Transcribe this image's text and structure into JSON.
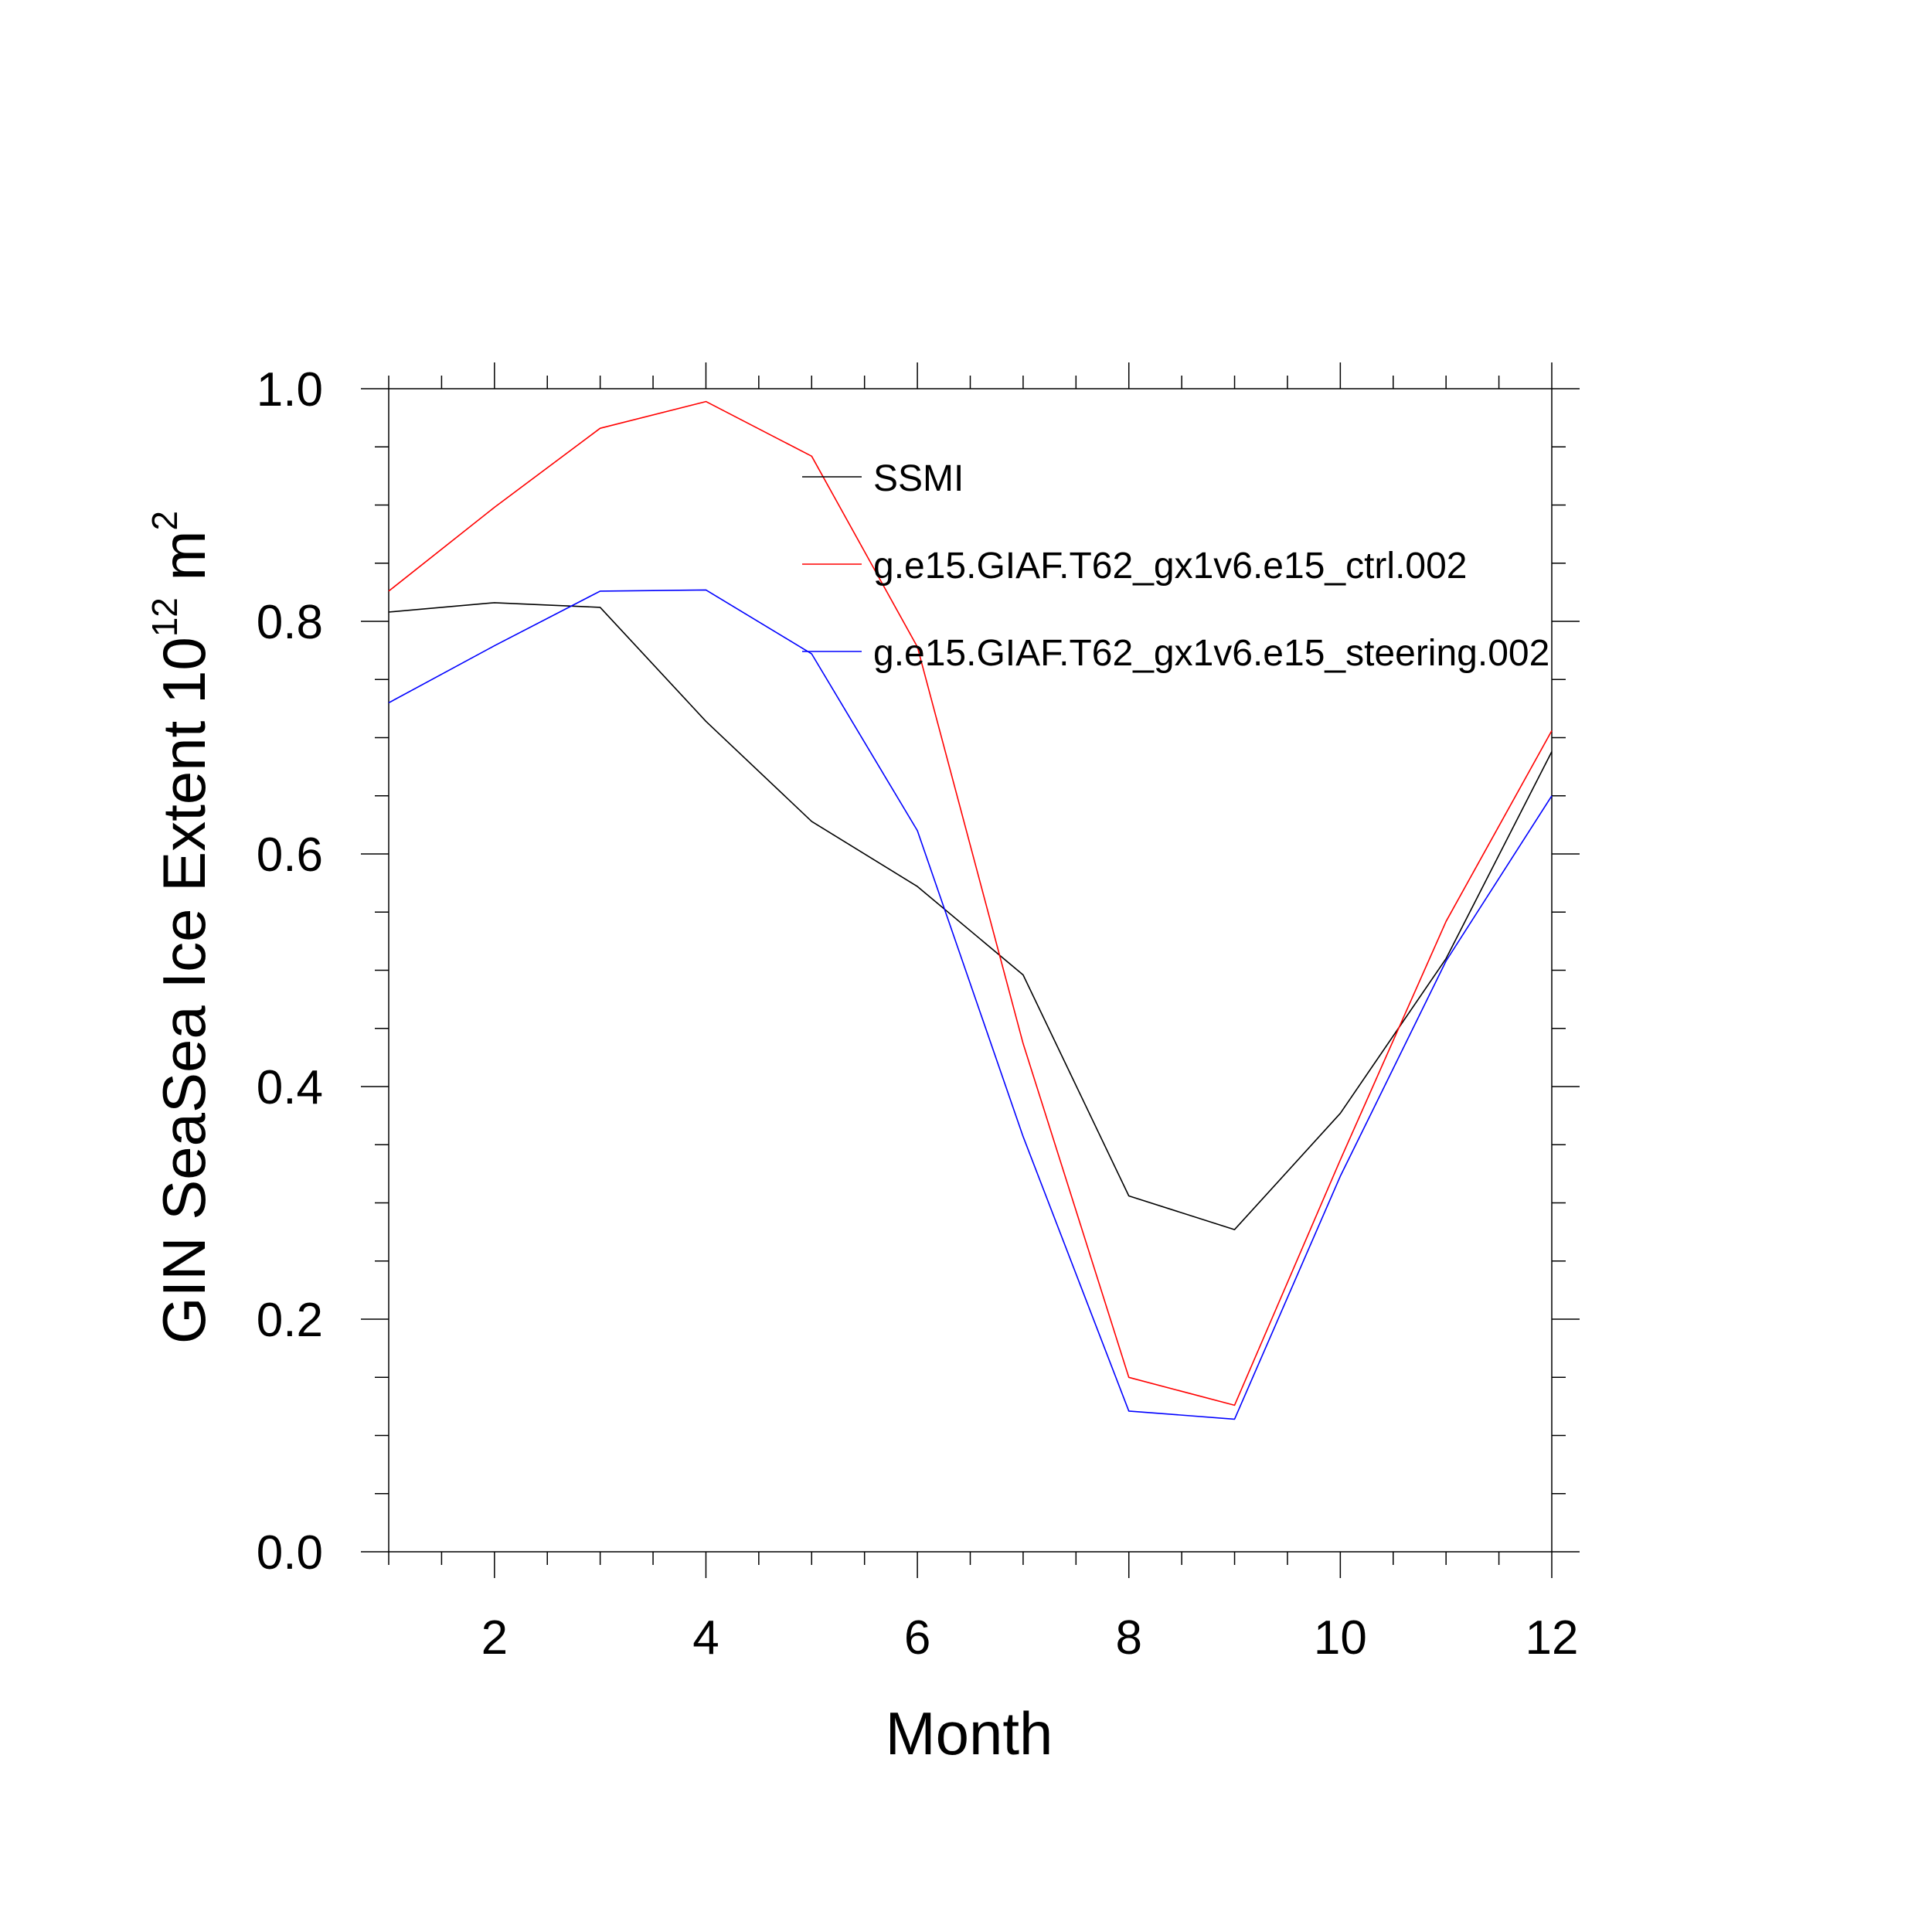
{
  "chart_data": {
    "type": "line",
    "title": "",
    "xlabel": "Month",
    "ylabel": {
      "base": "GIN SeaSea Ice Extent 10",
      "exp1": "12",
      "unit": " m",
      "exp2": "2"
    },
    "xlim": [
      1,
      12
    ],
    "ylim": [
      0.0,
      1.0
    ],
    "xticks": [
      2,
      4,
      6,
      8,
      10,
      12
    ],
    "yticks": [
      0.0,
      0.2,
      0.4,
      0.6,
      0.8,
      1.0
    ],
    "ytick_labels": [
      "0.0",
      "0.2",
      "0.4",
      "0.6",
      "0.8",
      "1.0"
    ],
    "x": [
      1,
      2,
      3,
      4,
      5,
      6,
      7,
      8,
      9,
      10,
      11,
      12
    ],
    "grid": false,
    "legend_position": "top-center",
    "series": [
      {
        "name": "SSMI",
        "color": "#000000",
        "values": [
          0.808,
          0.816,
          0.812,
          0.714,
          0.628,
          0.572,
          0.496,
          0.306,
          0.277,
          0.377,
          0.51,
          0.688
        ]
      },
      {
        "name": "g.e15.GIAF.T62_gx1v6.e15_ctrl.002",
        "color": "#ff0000",
        "values": [
          0.826,
          0.898,
          0.966,
          0.989,
          0.942,
          0.778,
          0.437,
          0.15,
          0.126,
          0.337,
          0.542,
          0.706
        ]
      },
      {
        "name": "g.e15.GIAF.T62_gx1v6.e15_steering.002",
        "color": "#0000ff",
        "values": [
          0.73,
          0.779,
          0.826,
          0.827,
          0.772,
          0.62,
          0.357,
          0.121,
          0.114,
          0.323,
          0.508,
          0.65
        ]
      }
    ]
  }
}
